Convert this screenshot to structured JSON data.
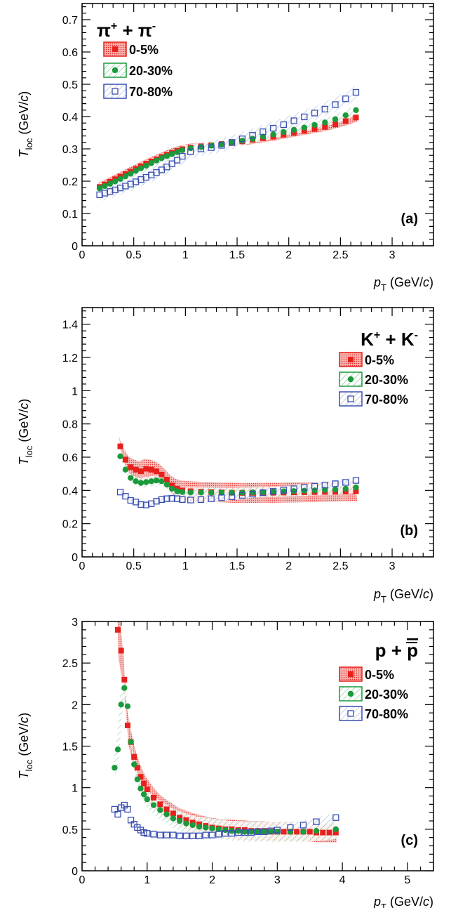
{
  "chart_data": [
    {
      "type": "scatter",
      "panel_label": "(a)",
      "particle": {
        "main": "π",
        "sup1": "+",
        "mid": " + π",
        "sup2": "-"
      },
      "xlabel": {
        "var": "p",
        "sub": "T",
        "unit": " (GeV/",
        "unit_it": "c",
        "unit_end": ")"
      },
      "ylabel": {
        "var": "T",
        "sub": "loc",
        "unit": " (GeV/",
        "unit_it": "c",
        "unit_end": ")"
      },
      "xlim": [
        0,
        3.4
      ],
      "ylim": [
        0,
        0.75
      ],
      "xticks": [
        0,
        0.5,
        1,
        1.5,
        2,
        2.5,
        3
      ],
      "xtick_labels": [
        "0",
        "0.5",
        "1",
        "1.5",
        "2",
        "2.5",
        "3"
      ],
      "yticks": [
        0,
        0.1,
        0.2,
        0.3,
        0.4,
        0.5,
        0.6,
        0.7
      ],
      "ytick_labels": [
        "0",
        "0.1",
        "0.2",
        "0.3",
        "0.4",
        "0.5",
        "0.6",
        "0.7"
      ],
      "series": [
        {
          "name": "0-5%",
          "marker": "square-filled",
          "color": "#e8201c",
          "x": [
            0.17,
            0.22,
            0.27,
            0.32,
            0.37,
            0.42,
            0.47,
            0.52,
            0.57,
            0.62,
            0.67,
            0.72,
            0.77,
            0.82,
            0.87,
            0.92,
            0.97,
            1.05,
            1.15,
            1.25,
            1.35,
            1.45,
            1.55,
            1.65,
            1.75,
            1.85,
            1.95,
            2.05,
            2.15,
            2.25,
            2.35,
            2.45,
            2.55,
            2.65
          ],
          "y": [
            0.182,
            0.19,
            0.198,
            0.206,
            0.214,
            0.222,
            0.23,
            0.238,
            0.246,
            0.254,
            0.261,
            0.268,
            0.275,
            0.282,
            0.288,
            0.294,
            0.299,
            0.304,
            0.308,
            0.311,
            0.315,
            0.318,
            0.323,
            0.328,
            0.333,
            0.338,
            0.344,
            0.35,
            0.356,
            0.362,
            0.368,
            0.376,
            0.386,
            0.397
          ],
          "band": 0.012
        },
        {
          "name": "20-30%",
          "marker": "circle-filled",
          "color": "#1a9a3c",
          "x": [
            0.17,
            0.22,
            0.27,
            0.32,
            0.37,
            0.42,
            0.47,
            0.52,
            0.57,
            0.62,
            0.67,
            0.72,
            0.77,
            0.82,
            0.87,
            0.92,
            0.97,
            1.05,
            1.15,
            1.25,
            1.35,
            1.45,
            1.55,
            1.65,
            1.75,
            1.85,
            1.95,
            2.05,
            2.15,
            2.25,
            2.35,
            2.45,
            2.55,
            2.65
          ],
          "y": [
            0.178,
            0.185,
            0.192,
            0.199,
            0.207,
            0.215,
            0.223,
            0.232,
            0.24,
            0.248,
            0.256,
            0.264,
            0.271,
            0.278,
            0.284,
            0.29,
            0.296,
            0.302,
            0.306,
            0.31,
            0.314,
            0.319,
            0.325,
            0.331,
            0.338,
            0.345,
            0.352,
            0.359,
            0.366,
            0.374,
            0.382,
            0.392,
            0.404,
            0.42
          ],
          "band": 0.012
        },
        {
          "name": "70-80%",
          "marker": "square-open",
          "color": "#3a4fb0",
          "x": [
            0.17,
            0.22,
            0.27,
            0.32,
            0.37,
            0.42,
            0.47,
            0.52,
            0.57,
            0.62,
            0.67,
            0.72,
            0.77,
            0.82,
            0.87,
            0.92,
            0.97,
            1.05,
            1.15,
            1.25,
            1.35,
            1.45,
            1.55,
            1.65,
            1.75,
            1.85,
            1.95,
            2.05,
            2.15,
            2.25,
            2.35,
            2.45,
            2.55,
            2.65
          ],
          "y": [
            0.158,
            0.163,
            0.168,
            0.173,
            0.179,
            0.185,
            0.191,
            0.198,
            0.205,
            0.212,
            0.219,
            0.227,
            0.235,
            0.244,
            0.254,
            0.265,
            0.277,
            0.291,
            0.3,
            0.304,
            0.311,
            0.32,
            0.331,
            0.342,
            0.353,
            0.364,
            0.375,
            0.387,
            0.399,
            0.411,
            0.423,
            0.437,
            0.455,
            0.475
          ],
          "band": 0.02
        }
      ]
    },
    {
      "type": "scatter",
      "panel_label": "(b)",
      "particle": {
        "main": "K",
        "sup1": "+",
        "mid": " + K",
        "sup2": "-"
      },
      "xlabel": {
        "var": "p",
        "sub": "T",
        "unit": " (GeV/",
        "unit_it": "c",
        "unit_end": ")"
      },
      "ylabel": {
        "var": "T",
        "sub": "loc",
        "unit": " (GeV/",
        "unit_it": "c",
        "unit_end": ")"
      },
      "xlim": [
        0,
        3.4
      ],
      "ylim": [
        0,
        1.5
      ],
      "xticks": [
        0,
        0.5,
        1,
        1.5,
        2,
        2.5,
        3
      ],
      "xtick_labels": [
        "0",
        "0.5",
        "1",
        "1.5",
        "2",
        "2.5",
        "3"
      ],
      "yticks": [
        0,
        0.2,
        0.4,
        0.6,
        0.8,
        1,
        1.2,
        1.4
      ],
      "ytick_labels": [
        "0",
        "0.2",
        "0.4",
        "0.6",
        "0.8",
        "1",
        "1.2",
        "1.4"
      ],
      "series": [
        {
          "name": "0-5%",
          "marker": "square-filled",
          "color": "#e8201c",
          "x": [
            0.37,
            0.42,
            0.47,
            0.52,
            0.57,
            0.62,
            0.67,
            0.72,
            0.77,
            0.82,
            0.87,
            0.92,
            0.97,
            1.05,
            1.15,
            1.25,
            1.35,
            1.45,
            1.55,
            1.65,
            1.75,
            1.85,
            1.95,
            2.05,
            2.15,
            2.25,
            2.35,
            2.45,
            2.55,
            2.65
          ],
          "y": [
            0.665,
            0.585,
            0.54,
            0.525,
            0.515,
            0.53,
            0.525,
            0.515,
            0.495,
            0.465,
            0.43,
            0.41,
            0.4,
            0.395,
            0.392,
            0.39,
            0.388,
            0.386,
            0.385,
            0.385,
            0.386,
            0.386,
            0.387,
            0.388,
            0.389,
            0.39,
            0.391,
            0.392,
            0.394,
            0.395
          ],
          "band": 0.06
        },
        {
          "name": "20-30%",
          "marker": "circle-filled",
          "color": "#1a9a3c",
          "x": [
            0.37,
            0.42,
            0.47,
            0.52,
            0.57,
            0.62,
            0.67,
            0.72,
            0.77,
            0.82,
            0.87,
            0.92,
            0.97,
            1.05,
            1.15,
            1.25,
            1.35,
            1.45,
            1.55,
            1.65,
            1.75,
            1.85,
            1.95,
            2.05,
            2.15,
            2.25,
            2.35,
            2.45,
            2.55,
            2.65
          ],
          "y": [
            0.605,
            0.525,
            0.475,
            0.455,
            0.445,
            0.45,
            0.455,
            0.46,
            0.455,
            0.435,
            0.41,
            0.395,
            0.39,
            0.388,
            0.388,
            0.387,
            0.386,
            0.386,
            0.387,
            0.388,
            0.39,
            0.392,
            0.394,
            0.396,
            0.398,
            0.4,
            0.403,
            0.406,
            0.41,
            0.418
          ],
          "band": 0.03
        },
        {
          "name": "70-80%",
          "marker": "square-open",
          "color": "#3a4fb0",
          "x": [
            0.37,
            0.42,
            0.47,
            0.52,
            0.57,
            0.62,
            0.67,
            0.72,
            0.77,
            0.82,
            0.87,
            0.92,
            0.97,
            1.05,
            1.15,
            1.25,
            1.35,
            1.45,
            1.55,
            1.65,
            1.75,
            1.85,
            1.95,
            2.05,
            2.15,
            2.25,
            2.35,
            2.45,
            2.55,
            2.65
          ],
          "y": [
            0.39,
            0.365,
            0.34,
            0.33,
            0.315,
            0.312,
            0.32,
            0.335,
            0.345,
            0.35,
            0.352,
            0.35,
            0.345,
            0.342,
            0.345,
            0.35,
            0.356,
            0.362,
            0.37,
            0.378,
            0.386,
            0.394,
            0.402,
            0.41,
            0.418,
            0.425,
            0.432,
            0.44,
            0.448,
            0.46
          ],
          "band": 0.02
        }
      ]
    },
    {
      "type": "scatter",
      "panel_label": "(c)",
      "particle": {
        "main": "p",
        "sup1": "",
        "mid": " + ",
        "bar": "p",
        "sup2": ""
      },
      "xlabel": {
        "var": "p",
        "sub": "T",
        "unit": " (GeV/",
        "unit_it": "c",
        "unit_end": ")"
      },
      "ylabel": {
        "var": "T",
        "sub": "loc",
        "unit": " (GeV/",
        "unit_it": "c",
        "unit_end": ")"
      },
      "xlim": [
        0,
        5.4
      ],
      "ylim": [
        0,
        3
      ],
      "xticks": [
        0,
        1,
        2,
        3,
        4,
        5
      ],
      "xtick_labels": [
        "0",
        "1",
        "2",
        "3",
        "4",
        "5"
      ],
      "yticks": [
        0,
        0.5,
        1,
        1.5,
        2,
        2.5,
        3
      ],
      "ytick_labels": [
        "0",
        "0.5",
        "1",
        "1.5",
        "2",
        "2.5",
        "3"
      ],
      "series": [
        {
          "name": "0-5%",
          "marker": "square-filled",
          "color": "#e8201c",
          "x": [
            0.55,
            0.6,
            0.65,
            0.7,
            0.75,
            0.8,
            0.85,
            0.9,
            0.95,
            1.0,
            1.1,
            1.2,
            1.3,
            1.4,
            1.5,
            1.6,
            1.7,
            1.8,
            1.9,
            2.0,
            2.1,
            2.2,
            2.3,
            2.4,
            2.5,
            2.6,
            2.7,
            2.8,
            2.9,
            3.0,
            3.1,
            3.2,
            3.3,
            3.4,
            3.5,
            3.6,
            3.7,
            3.8,
            3.9
          ],
          "y": [
            2.9,
            2.65,
            2.3,
            1.75,
            1.55,
            1.37,
            1.24,
            1.13,
            1.05,
            0.98,
            0.88,
            0.8,
            0.74,
            0.69,
            0.64,
            0.61,
            0.58,
            0.56,
            0.54,
            0.52,
            0.51,
            0.5,
            0.5,
            0.49,
            0.49,
            0.48,
            0.48,
            0.48,
            0.47,
            0.47,
            0.47,
            0.47,
            0.47,
            0.47,
            0.47,
            0.46,
            0.46,
            0.46,
            0.46
          ],
          "band": 0.35
        },
        {
          "name": "20-30%",
          "marker": "circle-filled",
          "color": "#1a9a3c",
          "x": [
            0.5,
            0.55,
            0.6,
            0.65,
            0.7,
            0.75,
            0.8,
            0.85,
            0.9,
            0.95,
            1.0,
            1.1,
            1.2,
            1.3,
            1.4,
            1.5,
            1.6,
            1.7,
            1.8,
            1.9,
            2.0,
            2.1,
            2.2,
            2.3,
            2.4,
            2.5,
            2.6,
            2.7,
            2.8,
            2.9,
            3.0,
            3.2,
            3.4,
            3.6,
            3.9
          ],
          "y": [
            1.24,
            1.46,
            2.0,
            2.2,
            1.98,
            1.55,
            1.28,
            1.1,
            0.99,
            0.92,
            0.86,
            0.79,
            0.73,
            0.68,
            0.63,
            0.6,
            0.57,
            0.55,
            0.53,
            0.52,
            0.51,
            0.5,
            0.49,
            0.48,
            0.48,
            0.47,
            0.47,
            0.47,
            0.47,
            0.47,
            0.47,
            0.47,
            0.47,
            0.48,
            0.5
          ],
          "band": 0.12
        },
        {
          "name": "70-80%",
          "marker": "square-open",
          "color": "#3a4fb0",
          "x": [
            0.5,
            0.55,
            0.6,
            0.65,
            0.7,
            0.75,
            0.8,
            0.85,
            0.9,
            0.95,
            1.0,
            1.1,
            1.2,
            1.3,
            1.4,
            1.5,
            1.6,
            1.7,
            1.8,
            1.9,
            2.0,
            2.1,
            2.2,
            2.3,
            2.4,
            2.5,
            2.6,
            2.7,
            2.8,
            2.9,
            3.0,
            3.2,
            3.4,
            3.6,
            3.9
          ],
          "y": [
            0.74,
            0.68,
            0.76,
            0.79,
            0.74,
            0.61,
            0.56,
            0.52,
            0.49,
            0.46,
            0.45,
            0.44,
            0.43,
            0.43,
            0.43,
            0.42,
            0.42,
            0.42,
            0.42,
            0.43,
            0.43,
            0.44,
            0.45,
            0.45,
            0.46,
            0.46,
            0.46,
            0.47,
            0.47,
            0.48,
            0.49,
            0.52,
            0.55,
            0.59,
            0.64
          ],
          "band": 0.05
        }
      ]
    }
  ]
}
